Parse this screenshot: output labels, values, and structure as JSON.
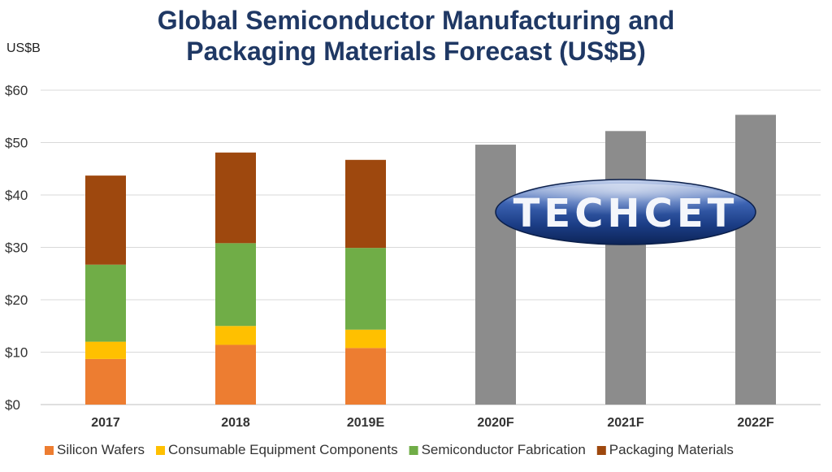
{
  "chart_data": {
    "type": "bar",
    "stacked": true,
    "title": [
      "Global Semiconductor Manufacturing and",
      "Packaging Materials Forecast (US$B)"
    ],
    "ylabel": "US$B",
    "ylim": [
      0,
      60
    ],
    "yticks": [
      "$0",
      "$10",
      "$20",
      "$30",
      "$40",
      "$50",
      "$60"
    ],
    "categories": [
      "2017",
      "2018",
      "2019E",
      "2020F",
      "2021F",
      "2022F"
    ],
    "series": [
      {
        "name": "Silicon Wafers",
        "color": "#ed7d31",
        "values": [
          8.7,
          11.4,
          10.8,
          null,
          null,
          null
        ]
      },
      {
        "name": "Consumable Equipment Components",
        "color": "#ffc000",
        "values": [
          3.3,
          3.6,
          3.5,
          null,
          null,
          null
        ]
      },
      {
        "name": "Semiconductor Fabrication",
        "color": "#70ad47",
        "values": [
          14.7,
          15.8,
          15.6,
          null,
          null,
          null
        ]
      },
      {
        "name": "Packaging Materials",
        "color": "#9e480e",
        "values": [
          17.0,
          17.3,
          16.8,
          null,
          null,
          null
        ]
      }
    ],
    "totals_obscured": {
      "color": "#8c8c8c",
      "values": [
        null,
        null,
        null,
        49.6,
        52.2,
        55.3
      ]
    },
    "grid": true,
    "legend": "bottom"
  },
  "watermark": {
    "text": "TECHCET"
  }
}
